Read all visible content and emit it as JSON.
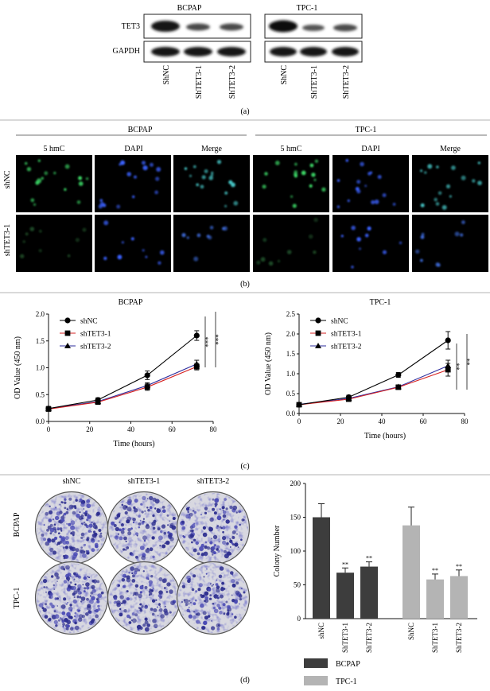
{
  "panel_a": {
    "letter": "(a)",
    "groups": [
      "BCPAP",
      "TPC-1"
    ],
    "rows": [
      "TET3",
      "GAPDH"
    ],
    "lanes": [
      "ShNC",
      "ShTET3-1",
      "ShTET3-2",
      "ShNC",
      "ShTET3-1",
      "ShTET3-2"
    ]
  },
  "panel_b": {
    "letter": "(b)",
    "groups": [
      "BCPAP",
      "TPC-1"
    ],
    "channels": [
      "5 hmC",
      "DAPI",
      "Merge"
    ],
    "rows": [
      "shNC",
      "shTET3-1"
    ]
  },
  "panel_c": {
    "letter": "(c)",
    "colors": {
      "shNC": "#000000",
      "shTET3-1": "#d62020",
      "shTET3-2": "#2e2e9e"
    },
    "chart_data": [
      {
        "type": "line",
        "title": "BCPAP",
        "xlabel": "Time (hours)",
        "ylabel": "OD Value (450 nm)",
        "xlim": [
          0,
          80
        ],
        "ylim": [
          0,
          2.0
        ],
        "xticks": [
          "0",
          "20",
          "40",
          "60",
          "80"
        ],
        "yticks": [
          "0.0",
          "0.5",
          "1.0",
          "1.5",
          "2.0"
        ],
        "x": [
          0,
          24,
          48,
          72
        ],
        "series": [
          {
            "name": "shNC",
            "marker": "circle",
            "values": [
              0.24,
              0.4,
              0.86,
              1.6
            ],
            "errors": [
              0.04,
              0.04,
              0.08,
              0.09
            ]
          },
          {
            "name": "shTET3-1",
            "marker": "square",
            "values": [
              0.23,
              0.36,
              0.64,
              1.02
            ],
            "errors": [
              0.03,
              0.03,
              0.06,
              0.06
            ]
          },
          {
            "name": "shTET3-2",
            "marker": "triangle",
            "values": [
              0.24,
              0.37,
              0.67,
              1.07
            ],
            "errors": [
              0.03,
              0.03,
              0.05,
              0.07
            ]
          }
        ],
        "significance": [
          "***",
          "***"
        ]
      },
      {
        "type": "line",
        "title": "TPC-1",
        "xlabel": "Time (hours)",
        "ylabel": "OD Value (450 nm)",
        "xlim": [
          0,
          80
        ],
        "ylim": [
          0,
          2.5
        ],
        "xticks": [
          "0",
          "20",
          "40",
          "60",
          "80"
        ],
        "yticks": [
          "0.0",
          "0.5",
          "1.0",
          "1.5",
          "2.0",
          "2.5"
        ],
        "x": [
          0,
          24,
          48,
          72
        ],
        "series": [
          {
            "name": "shNC",
            "marker": "circle",
            "values": [
              0.22,
              0.41,
              0.97,
              1.84
            ],
            "errors": [
              0.04,
              0.05,
              0.06,
              0.22
            ]
          },
          {
            "name": "shTET3-1",
            "marker": "square",
            "values": [
              0.22,
              0.36,
              0.66,
              1.1
            ],
            "errors": [
              0.03,
              0.04,
              0.05,
              0.16
            ]
          },
          {
            "name": "shTET3-2",
            "marker": "triangle",
            "values": [
              0.23,
              0.38,
              0.67,
              1.2
            ],
            "errors": [
              0.03,
              0.04,
              0.05,
              0.14
            ]
          }
        ],
        "significance": [
          "**",
          "**"
        ]
      }
    ]
  },
  "panel_d": {
    "letter": "(d)",
    "plate_cols": [
      "shNC",
      "shTET3-1",
      "shTET3-2"
    ],
    "plate_rows": [
      "BCPAP",
      "TPC-1"
    ],
    "colors": {
      "BCPAP": "#3d3d3d",
      "TPC-1": "#b4b4b4"
    },
    "chart_data": {
      "type": "bar",
      "ylabel": "Colony Number",
      "ylim": [
        0,
        200
      ],
      "yticks": [
        "0",
        "50",
        "100",
        "150",
        "200"
      ],
      "categories": [
        "shNC",
        "ShTET3-1",
        "ShTET3-2",
        "ShNC",
        "ShTET3-1",
        "ShTET3-2"
      ],
      "groups": [
        "BCPAP",
        "BCPAP",
        "BCPAP",
        "TPC-1",
        "TPC-1",
        "TPC-1"
      ],
      "values": [
        150,
        68,
        77,
        138,
        58,
        63
      ],
      "errors": [
        20,
        7,
        7,
        27,
        8,
        9
      ],
      "annotations": [
        "",
        "**",
        "**",
        "",
        "**",
        "**"
      ],
      "legend": [
        "BCPAP",
        "TPC-1"
      ]
    }
  }
}
